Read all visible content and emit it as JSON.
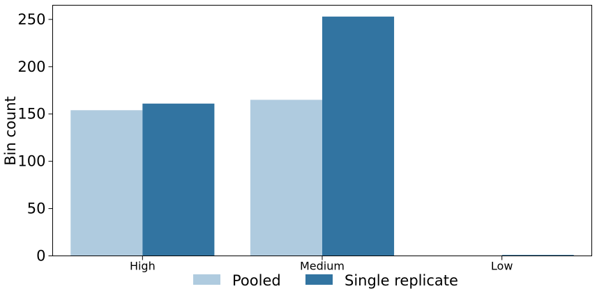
{
  "chart_data": {
    "type": "bar",
    "categories": [
      "High",
      "Medium",
      "Low"
    ],
    "series": [
      {
        "name": "Pooled",
        "values": [
          154,
          165,
          0
        ],
        "color": "#afcbdf"
      },
      {
        "name": "Single replicate",
        "values": [
          161,
          253,
          1
        ],
        "color": "#3274a1"
      }
    ],
    "xlabel": "",
    "ylabel": "Bin count",
    "ylim": [
      0,
      265
    ],
    "yticks": [
      0,
      50,
      100,
      150,
      200,
      250
    ],
    "grid": false,
    "legend_position": "bottom-center"
  }
}
